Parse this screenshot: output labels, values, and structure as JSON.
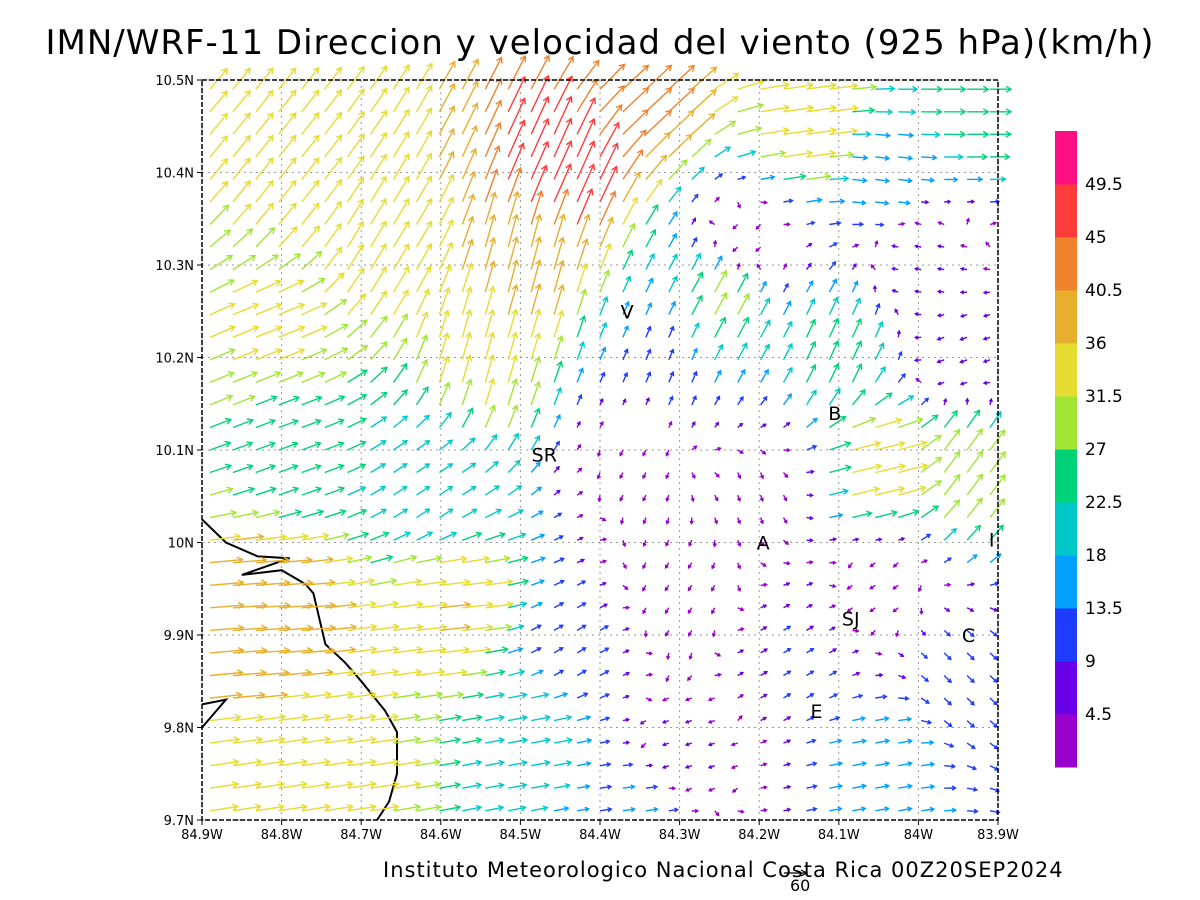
{
  "title": "IMN/WRF-11 Direccion y velocidad del viento (925 hPa)(km/h)",
  "footer": "Instituto Meteorologico Nacional Costa Rica 00Z20SEP2024",
  "reference_vector": {
    "value": 60,
    "label": "60"
  },
  "map": {
    "lon_range": [
      -84.9,
      -83.9
    ],
    "lat_range": [
      9.7,
      10.5
    ],
    "lon_ticks": [
      {
        "value": -84.9,
        "label": "84.9W"
      },
      {
        "value": -84.8,
        "label": "84.8W"
      },
      {
        "value": -84.7,
        "label": "84.7W"
      },
      {
        "value": -84.6,
        "label": "84.6W"
      },
      {
        "value": -84.5,
        "label": "84.5W"
      },
      {
        "value": -84.4,
        "label": "84.4W"
      },
      {
        "value": -84.3,
        "label": "84.3W"
      },
      {
        "value": -84.2,
        "label": "84.2W"
      },
      {
        "value": -84.1,
        "label": "84.1W"
      },
      {
        "value": -84.0,
        "label": "84W"
      },
      {
        "value": -83.9,
        "label": "83.9W"
      }
    ],
    "lat_ticks": [
      {
        "value": 9.7,
        "label": "9.7N"
      },
      {
        "value": 9.8,
        "label": "9.8N"
      },
      {
        "value": 9.9,
        "label": "9.9N"
      },
      {
        "value": 10.0,
        "label": "10N"
      },
      {
        "value": 10.1,
        "label": "10.1N"
      },
      {
        "value": 10.2,
        "label": "10.2N"
      },
      {
        "value": 10.3,
        "label": "10.3N"
      },
      {
        "value": 10.4,
        "label": "10.4N"
      },
      {
        "value": 10.5,
        "label": "10.5N"
      }
    ],
    "gridlines": true,
    "coastline": [
      [
        [
          -84.9,
          10.025
        ],
        [
          -84.87,
          10.0
        ],
        [
          -84.83,
          9.985
        ],
        [
          -84.79,
          9.983
        ],
        [
          -84.85,
          9.965
        ],
        [
          -84.8,
          9.97
        ],
        [
          -84.77,
          9.955
        ],
        [
          -84.76,
          9.945
        ],
        [
          -84.745,
          9.89
        ],
        [
          -84.72,
          9.87
        ],
        [
          -84.7,
          9.85
        ],
        [
          -84.67,
          9.818
        ],
        [
          -84.655,
          9.795
        ],
        [
          -84.655,
          9.75
        ],
        [
          -84.665,
          9.72
        ],
        [
          -84.68,
          9.7
        ]
      ],
      [
        [
          -84.9,
          9.8
        ],
        [
          -84.87,
          9.83
        ],
        [
          -84.9,
          9.825
        ]
      ]
    ],
    "places": [
      {
        "label": "V",
        "lon": -84.366,
        "lat": 10.25
      },
      {
        "label": "SR",
        "lon": -84.47,
        "lat": 10.095
      },
      {
        "label": "B",
        "lon": -84.105,
        "lat": 10.14
      },
      {
        "label": "A",
        "lon": -84.195,
        "lat": 10.0
      },
      {
        "label": "SJ",
        "lon": -84.085,
        "lat": 9.918
      },
      {
        "label": "C",
        "lon": -83.937,
        "lat": 9.9
      },
      {
        "label": "E",
        "lon": -84.128,
        "lat": 9.818
      },
      {
        "label": "I",
        "lon": -83.908,
        "lat": 10.003
      }
    ]
  },
  "colorbar": {
    "labels": [
      "4.5",
      "9",
      "13.5",
      "18",
      "22.5",
      "27",
      "31.5",
      "36",
      "40.5",
      "45",
      "49.5"
    ],
    "colors": [
      "#9900cc",
      "#6a00e8",
      "#1e3cff",
      "#00a0ff",
      "#00c8c8",
      "#00d278",
      "#a0e632",
      "#e6dc32",
      "#e6af2d",
      "#f0822d",
      "#ff3c3c",
      "#ff0f82"
    ]
  },
  "chart_data": {
    "type": "vector_field",
    "title": "IMN/WRF-11 Direccion y velocidad del viento (925 hPa)(km/h)",
    "units": "km/h",
    "levels": [
      4.5,
      9,
      13.5,
      18,
      22.5,
      27,
      31.5,
      36,
      40.5,
      45,
      49.5
    ],
    "wind_regions": [
      {
        "lon": -84.83,
        "lat": 9.93,
        "u": 40,
        "v": 3
      },
      {
        "lon": -84.75,
        "lat": 9.75,
        "u": 33,
        "v": 5
      },
      {
        "lon": -84.6,
        "lat": 9.93,
        "u": 36,
        "v": 4
      },
      {
        "lon": -84.5,
        "lat": 9.8,
        "u": 22,
        "v": 4
      },
      {
        "lon": -84.8,
        "lat": 10.1,
        "u": 22,
        "v": 8
      },
      {
        "lon": -84.82,
        "lat": 10.22,
        "u": 30,
        "v": 12
      },
      {
        "lon": -84.8,
        "lat": 10.38,
        "u": 20,
        "v": 25
      },
      {
        "lon": -84.68,
        "lat": 10.32,
        "u": 18,
        "v": 30
      },
      {
        "lon": -84.55,
        "lat": 10.2,
        "u": 9,
        "v": 32
      },
      {
        "lon": -84.5,
        "lat": 10.3,
        "u": 10,
        "v": 38
      },
      {
        "lon": -84.45,
        "lat": 10.4,
        "u": 20,
        "v": 45
      },
      {
        "lon": -84.35,
        "lat": 10.47,
        "u": 30,
        "v": 28
      },
      {
        "lon": -84.15,
        "lat": 10.45,
        "u": 35,
        "v": 5
      },
      {
        "lon": -83.95,
        "lat": 10.47,
        "u": 25,
        "v": 0
      },
      {
        "lon": -84.05,
        "lat": 10.4,
        "u": 16,
        "v": -2
      },
      {
        "lon": -84.25,
        "lat": 10.26,
        "u": 14,
        "v": 26
      },
      {
        "lon": -84.32,
        "lat": 10.2,
        "u": 5,
        "v": 12
      },
      {
        "lon": -84.1,
        "lat": 10.2,
        "u": 10,
        "v": 22
      },
      {
        "lon": -84.22,
        "lat": 10.32,
        "u": -3,
        "v": -3
      },
      {
        "lon": -84.0,
        "lat": 10.3,
        "u": -6,
        "v": 1
      },
      {
        "lon": -83.95,
        "lat": 10.2,
        "u": -8,
        "v": -3
      },
      {
        "lon": -84.35,
        "lat": 10.08,
        "u": -1,
        "v": -2
      },
      {
        "lon": -84.2,
        "lat": 10.05,
        "u": 1,
        "v": -3
      },
      {
        "lon": -84.05,
        "lat": 10.08,
        "u": 35,
        "v": 8
      },
      {
        "lon": -83.95,
        "lat": 10.08,
        "u": 18,
        "v": 25
      },
      {
        "lon": -84.05,
        "lat": 9.95,
        "u": -3,
        "v": -2
      },
      {
        "lon": -84.3,
        "lat": 9.95,
        "u": -2,
        "v": -3
      },
      {
        "lon": -84.15,
        "lat": 9.87,
        "u": 8,
        "v": 5
      },
      {
        "lon": -83.95,
        "lat": 9.85,
        "u": 8,
        "v": -8
      },
      {
        "lon": -84.3,
        "lat": 9.77,
        "u": -6,
        "v": -2
      },
      {
        "lon": -84.05,
        "lat": 9.77,
        "u": 16,
        "v": 3
      },
      {
        "lon": -84.35,
        "lat": 9.72,
        "u": 14,
        "v": 2
      },
      {
        "lon": -84.45,
        "lat": 9.88,
        "u": 10,
        "v": 6
      },
      {
        "lon": -84.62,
        "lat": 10.05,
        "u": 15,
        "v": 10
      }
    ]
  }
}
